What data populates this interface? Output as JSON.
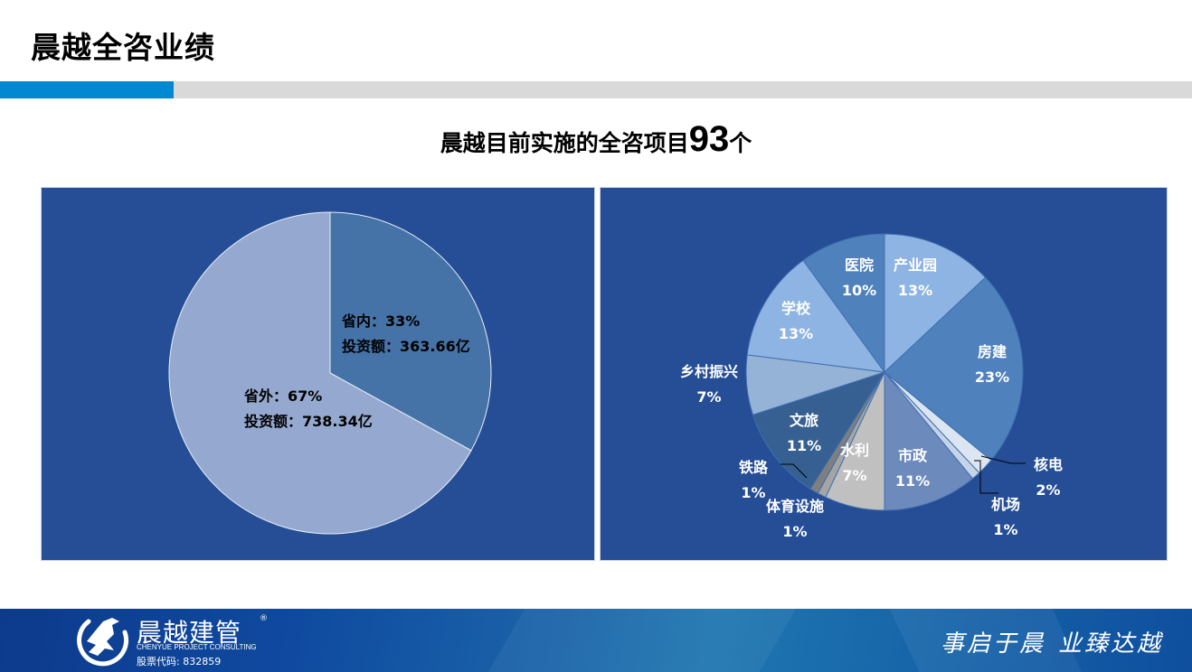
{
  "header": {
    "title": "晨越全咨业绩",
    "accent_color": "#0088d1",
    "rule_color": "#d9d9d9"
  },
  "subtitle": {
    "prefix": "晨越目前实施的全咨项目",
    "count": "93",
    "suffix": "个"
  },
  "chart_data": [
    {
      "type": "pie",
      "title": "",
      "background": "#254e96",
      "categories": [
        "省内",
        "省外"
      ],
      "values": [
        33,
        67
      ],
      "units": "%",
      "investment": [
        "363.66亿",
        "738.34亿"
      ],
      "colors": [
        "#4573a7",
        "#95a9d0"
      ],
      "labels": [
        {
          "line1": "省内：33%",
          "line2": "投资额：363.66亿"
        },
        {
          "line1": "省外：67%",
          "line2": "投资额：738.34亿"
        }
      ],
      "start_angle_deg": 0,
      "direction": "clockwise"
    },
    {
      "type": "pie",
      "title": "",
      "background": "#254e96",
      "categories": [
        "产业园",
        "房建",
        "核电",
        "机场",
        "市政",
        "水利",
        "体育设施",
        "铁路",
        "文旅",
        "乡村振兴",
        "学校",
        "医院"
      ],
      "values": [
        13,
        23,
        2,
        1,
        11,
        7,
        1,
        1,
        11,
        7,
        13,
        10
      ],
      "units": "%",
      "colors": [
        "#8eb4e3",
        "#4f81bd",
        "#dce6f2",
        "#c6d4e8",
        "#6d8abd",
        "#c0c0c0",
        "#a5a5a5",
        "#7f7f7f",
        "#366092",
        "#95b3d7",
        "#8eb4e3",
        "#4f81bd"
      ],
      "start_angle_deg": 0,
      "direction": "clockwise"
    }
  ],
  "left_chart": {
    "label_inside": {
      "line1": "省内：33%",
      "line2": "投资额：363.66亿"
    },
    "label_outside": {
      "line1": "省外：67%",
      "line2": "投资额：738.34亿"
    }
  },
  "right_chart": {
    "labels": [
      {
        "name": "产业园",
        "pct": "13%"
      },
      {
        "name": "房建",
        "pct": "23%"
      },
      {
        "name": "核电",
        "pct": "2%"
      },
      {
        "name": "机场",
        "pct": "1%"
      },
      {
        "name": "市政",
        "pct": "11%"
      },
      {
        "name": "水利",
        "pct": "7%"
      },
      {
        "name": "体育设施",
        "pct": "1%"
      },
      {
        "name": "铁路",
        "pct": "1%"
      },
      {
        "name": "文旅",
        "pct": "11%"
      },
      {
        "name": "乡村振兴",
        "pct": "7%"
      },
      {
        "name": "学校",
        "pct": "13%"
      },
      {
        "name": "医院",
        "pct": "10%"
      }
    ]
  },
  "footer": {
    "logo_cn": "晨越建管",
    "logo_reg": "®",
    "logo_en": "CHENYUE PROJECT CONSULTING",
    "stock_code": "股票代码: 832859",
    "slogan_part1": "事启于晨",
    "slogan_part2": "业臻达越"
  }
}
